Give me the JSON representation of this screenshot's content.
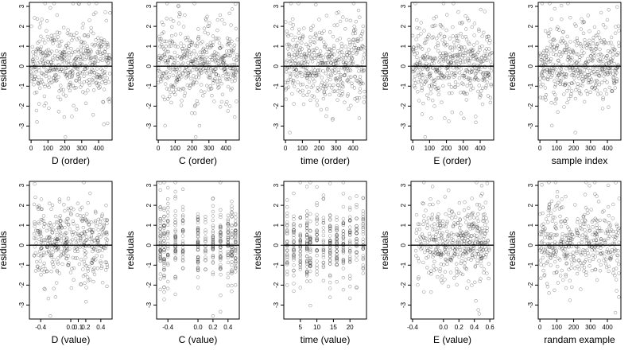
{
  "chart_data": [
    {
      "type": "scatter",
      "xlabel": "D (order)",
      "ylabel": "residuals",
      "xlim": [
        -10,
        480
      ],
      "ylim": [
        -3.7,
        3.2
      ],
      "xticks": [
        0,
        100,
        200,
        300,
        400
      ],
      "xtick_labels": [
        "0",
        "100",
        "200",
        "300",
        "400"
      ],
      "yticks": [
        -3,
        -2,
        -1,
        0,
        1,
        2,
        3
      ],
      "ytick_labels": [
        "-3",
        "-2",
        "-1",
        "0",
        "1",
        "2",
        "3"
      ],
      "hline": 0,
      "x_kind": "order",
      "n": 470,
      "seed": 11
    },
    {
      "type": "scatter",
      "xlabel": "C (order)",
      "ylabel": "residuals",
      "xlim": [
        -10,
        480
      ],
      "ylim": [
        -3.7,
        3.2
      ],
      "xticks": [
        0,
        100,
        200,
        300,
        400
      ],
      "xtick_labels": [
        "0",
        "100",
        "200",
        "300",
        "400"
      ],
      "yticks": [
        -3,
        -2,
        -1,
        0,
        1,
        2,
        3
      ],
      "ytick_labels": [
        "-3",
        "-2",
        "-1",
        "0",
        "1",
        "2",
        "3"
      ],
      "hline": 0,
      "x_kind": "order",
      "n": 470,
      "seed": 23
    },
    {
      "type": "scatter",
      "xlabel": "time (order)",
      "ylabel": "residuals",
      "xlim": [
        -10,
        480
      ],
      "ylim": [
        -3.7,
        3.2
      ],
      "xticks": [
        0,
        100,
        200,
        300,
        400
      ],
      "xtick_labels": [
        "0",
        "100",
        "200",
        "300",
        "400"
      ],
      "yticks": [
        -3,
        -2,
        -1,
        0,
        1,
        2,
        3
      ],
      "ytick_labels": [
        "-3",
        "-2",
        "-1",
        "0",
        "1",
        "2",
        "3"
      ],
      "hline": 0,
      "x_kind": "order",
      "n": 470,
      "seed": 37
    },
    {
      "type": "scatter",
      "xlabel": "E (order)",
      "ylabel": "residuals",
      "xlim": [
        -10,
        480
      ],
      "ylim": [
        -3.7,
        3.2
      ],
      "xticks": [
        0,
        100,
        200,
        300,
        400
      ],
      "xtick_labels": [
        "0",
        "100",
        "200",
        "300",
        "400"
      ],
      "yticks": [
        -3,
        -2,
        -1,
        0,
        1,
        2,
        3
      ],
      "ytick_labels": [
        "-3",
        "-2",
        "-1",
        "0",
        "1",
        "2",
        "3"
      ],
      "hline": 0,
      "x_kind": "order",
      "n": 470,
      "seed": 41
    },
    {
      "type": "scatter",
      "xlabel": "sample index",
      "ylabel": "residuals",
      "xlim": [
        -10,
        480
      ],
      "ylim": [
        -3.7,
        3.2
      ],
      "xticks": [
        0,
        100,
        200,
        300,
        400
      ],
      "xtick_labels": [
        "0",
        "100",
        "200",
        "300",
        "400"
      ],
      "yticks": [
        -3,
        -2,
        -1,
        0,
        1,
        2,
        3
      ],
      "ytick_labels": [
        "-3",
        "-2",
        "-1",
        "0",
        "1",
        "2",
        "3"
      ],
      "hline": 0,
      "x_kind": "order",
      "n": 470,
      "seed": 53
    },
    {
      "type": "scatter",
      "xlabel": "D (value)",
      "ylabel": "residuals",
      "xlim": [
        -0.55,
        0.55
      ],
      "ylim": [
        -3.7,
        3.2
      ],
      "xticks": [
        -0.4,
        0,
        0.1,
        0.2,
        0.4
      ],
      "xtick_labels": [
        "-0.4",
        "0.0",
        "0.1",
        "0.2",
        "0.4"
      ],
      "yticks": [
        -3,
        -2,
        -1,
        0,
        1,
        2,
        3
      ],
      "ytick_labels": [
        "-3",
        "-2",
        "-1",
        "0",
        "1",
        "2",
        "3"
      ],
      "hline": 0,
      "x_kind": "value",
      "n": 430,
      "seed": 61
    },
    {
      "type": "scatter",
      "xlabel": "C (value)",
      "ylabel": "residuals",
      "xlim": [
        -0.55,
        0.55
      ],
      "ylim": [
        -3.7,
        3.2
      ],
      "xticks": [
        -0.4,
        0,
        0.2,
        0.4
      ],
      "xtick_labels": [
        "-0.4",
        "0.0",
        "0.2",
        "0.4"
      ],
      "yticks": [
        -3,
        -2,
        -1,
        0,
        1,
        2,
        3
      ],
      "ytick_labels": [
        "-3",
        "-2",
        "-1",
        "0",
        "1",
        "2",
        "3"
      ],
      "hline": 0,
      "x_kind": "discrete",
      "levels": [
        -0.5,
        -0.45,
        -0.4,
        -0.3,
        -0.2,
        0,
        0.1,
        0.2,
        0.3,
        0.4,
        0.45,
        0.5
      ],
      "n": 430,
      "seed": 71
    },
    {
      "type": "scatter",
      "xlabel": "time (value)",
      "ylabel": "residuals",
      "xlim": [
        0,
        25
      ],
      "ylim": [
        -3.7,
        3.2
      ],
      "xticks": [
        5,
        10,
        15,
        20
      ],
      "xtick_labels": [
        "5",
        "10",
        "15",
        "20"
      ],
      "yticks": [
        -3,
        -2,
        -1,
        0,
        1,
        2,
        3
      ],
      "ytick_labels": [
        "-3",
        "-2",
        "-1",
        "0",
        "1",
        "2",
        "3"
      ],
      "hline": 0,
      "x_kind": "discrete",
      "levels": [
        1,
        3,
        5,
        7,
        8,
        10,
        12,
        14,
        16,
        18,
        20,
        22,
        24
      ],
      "n": 430,
      "seed": 83
    },
    {
      "type": "scatter",
      "xlabel": "E (value)",
      "ylabel": "residuals",
      "xlim": [
        -0.42,
        0.65
      ],
      "ylim": [
        -3.7,
        3.2
      ],
      "xticks": [
        -0.4,
        0,
        0.2,
        0.4,
        0.6
      ],
      "xtick_labels": [
        "-0.4",
        "0.0",
        "0.2",
        "0.4",
        "0.6"
      ],
      "yticks": [
        -3,
        -2,
        -1,
        0,
        1,
        2,
        3
      ],
      "ytick_labels": [
        "-3",
        "-2",
        "-1",
        "0",
        "1",
        "2",
        "3"
      ],
      "hline": 0,
      "x_kind": "value",
      "n": 430,
      "seed": 97
    },
    {
      "type": "scatter",
      "xlabel": "randam example",
      "ylabel": "residuals",
      "xlim": [
        -10,
        480
      ],
      "ylim": [
        -3.7,
        3.2
      ],
      "xticks": [
        0,
        100,
        200,
        300,
        400
      ],
      "xtick_labels": [
        "0",
        "100",
        "200",
        "300",
        "400"
      ],
      "yticks": [
        -3,
        -2,
        -1,
        0,
        1,
        2,
        3
      ],
      "ytick_labels": [
        "-3",
        "-2",
        "-1",
        "0",
        "1",
        "2",
        "3"
      ],
      "hline": 0,
      "x_kind": "uniform",
      "n": 420,
      "seed": 101
    }
  ]
}
